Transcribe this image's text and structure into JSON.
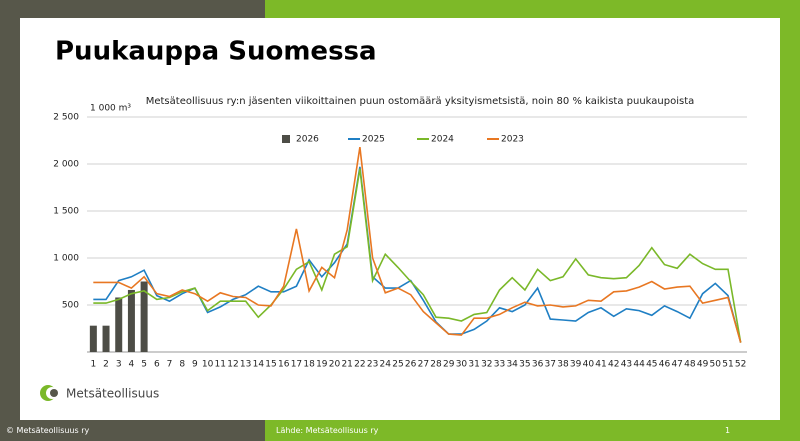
{
  "header": {
    "title": "Puukauppa Suomessa"
  },
  "chart_data": {
    "type": "combo",
    "title": "Metsäteollisuus ry:n jäsenten viikoittainen puun ostomäärä yksityismetsistä, noin 80 % kaikista puukaupoista",
    "y_label": "1 000 m³",
    "categories": [
      1,
      2,
      3,
      4,
      5,
      6,
      7,
      8,
      9,
      10,
      11,
      12,
      13,
      14,
      15,
      16,
      17,
      18,
      19,
      20,
      21,
      22,
      23,
      24,
      25,
      26,
      27,
      28,
      29,
      30,
      31,
      32,
      33,
      34,
      35,
      36,
      37,
      38,
      39,
      40,
      41,
      42,
      43,
      44,
      45,
      46,
      47,
      48,
      49,
      50,
      51,
      52
    ],
    "ylim": [
      0,
      2500
    ],
    "yticks": [
      500,
      {
        "value": 1000,
        "label": "1 000"
      },
      {
        "value": 1500,
        "label": "1 500"
      },
      {
        "value": 2000,
        "label": "2 000"
      },
      {
        "value": 2500,
        "label": "2 500"
      }
    ],
    "grid": true,
    "series": [
      {
        "name": "2026",
        "type": "bar",
        "color": "#4d4d46",
        "values": [
          280,
          280,
          580,
          660,
          750,
          null,
          null,
          null,
          null,
          null,
          null,
          null,
          null,
          null,
          null,
          null,
          null,
          null,
          null,
          null,
          null,
          null,
          null,
          null,
          null,
          null,
          null,
          null,
          null,
          null,
          null,
          null,
          null,
          null,
          null,
          null,
          null,
          null,
          null,
          null,
          null,
          null,
          null,
          null,
          null,
          null,
          null,
          null,
          null,
          null,
          null,
          null
        ]
      },
      {
        "name": "2025",
        "type": "line",
        "color": "#1f7fc4",
        "values": [
          560,
          560,
          760,
          800,
          870,
          600,
          540,
          620,
          680,
          420,
          480,
          560,
          610,
          700,
          640,
          640,
          700,
          980,
          800,
          950,
          1150,
          1970,
          800,
          680,
          680,
          760,
          550,
          320,
          190,
          190,
          240,
          330,
          470,
          430,
          500,
          680,
          350,
          340,
          330,
          420,
          470,
          380,
          460,
          440,
          390,
          490,
          430,
          360,
          620,
          730,
          600,
          100
        ]
      },
      {
        "name": "2024",
        "type": "line",
        "color": "#7ab829",
        "values": [
          520,
          520,
          560,
          620,
          650,
          560,
          580,
          640,
          680,
          440,
          540,
          540,
          540,
          370,
          500,
          670,
          880,
          960,
          660,
          1040,
          1120,
          1950,
          760,
          1040,
          900,
          750,
          610,
          370,
          360,
          330,
          400,
          420,
          660,
          790,
          660,
          880,
          760,
          800,
          990,
          820,
          790,
          780,
          790,
          920,
          1110,
          930,
          890,
          1040,
          940,
          880,
          880,
          100
        ]
      },
      {
        "name": "2023",
        "type": "line",
        "color": "#e87722",
        "values": [
          740,
          740,
          740,
          680,
          800,
          620,
          590,
          660,
          620,
          540,
          630,
          590,
          580,
          500,
          490,
          700,
          1310,
          650,
          900,
          790,
          1300,
          2180,
          1000,
          630,
          680,
          610,
          430,
          310,
          190,
          180,
          360,
          360,
          400,
          470,
          530,
          490,
          500,
          480,
          490,
          550,
          540,
          640,
          650,
          690,
          750,
          670,
          690,
          700,
          520,
          550,
          580,
          100
        ]
      }
    ]
  },
  "logo": {
    "text": "Metsäteollisuus"
  },
  "footer": {
    "copyright": "© Metsäteollisuus ry",
    "source": "Lähde: Metsäteollisuus ry",
    "page": "1"
  }
}
